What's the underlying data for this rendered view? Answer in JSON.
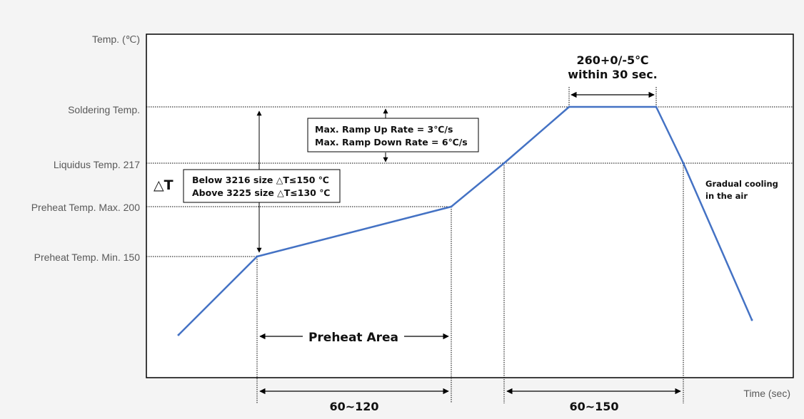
{
  "chart_data": {
    "type": "line",
    "title": "",
    "ylabel": "Temp. (℃)",
    "xlabel": "Time (sec)",
    "y_tick_labels": [
      "Soldering Temp.",
      "Liquidus Temp. 217",
      "Preheat Temp. Max. 200",
      "Preheat Temp. Min. 150"
    ],
    "series": [
      {
        "color": "#4472c4",
        "points": [
          {
            "t": 0,
            "label": "start"
          },
          {
            "t": 1,
            "label": "Preheat Temp. Min. 150"
          },
          {
            "t": 2,
            "label": "Preheat Temp. Max. 200"
          },
          {
            "t": 3,
            "label": "Liquidus Temp. 217"
          },
          {
            "t": 4,
            "label": "Soldering Temp."
          },
          {
            "t": 5,
            "label": "Soldering Temp."
          },
          {
            "t": 6,
            "label": "Liquidus Temp. 217"
          },
          {
            "t": 7,
            "label": "end"
          }
        ]
      }
    ],
    "annotations": {
      "peak_line1": "260+0/-5℃",
      "peak_line2": "within 30 sec.",
      "ramp_line1": "Max. Ramp Up Rate = 3℃/s",
      "ramp_line2": "Max. Ramp Down Rate = 6℃/s",
      "delta_t": "△T",
      "delta_line1": "Below 3216 size △T≤150 ℃",
      "delta_line2": "Above 3225 size △T≤130 ℃",
      "cooling_line1": "Gradual cooling",
      "cooling_line2": "in the air",
      "preheat_area": "Preheat Area",
      "preheat_time": "60~120",
      "liquidus_time": "60~150"
    },
    "grid": false,
    "legend": "none"
  }
}
